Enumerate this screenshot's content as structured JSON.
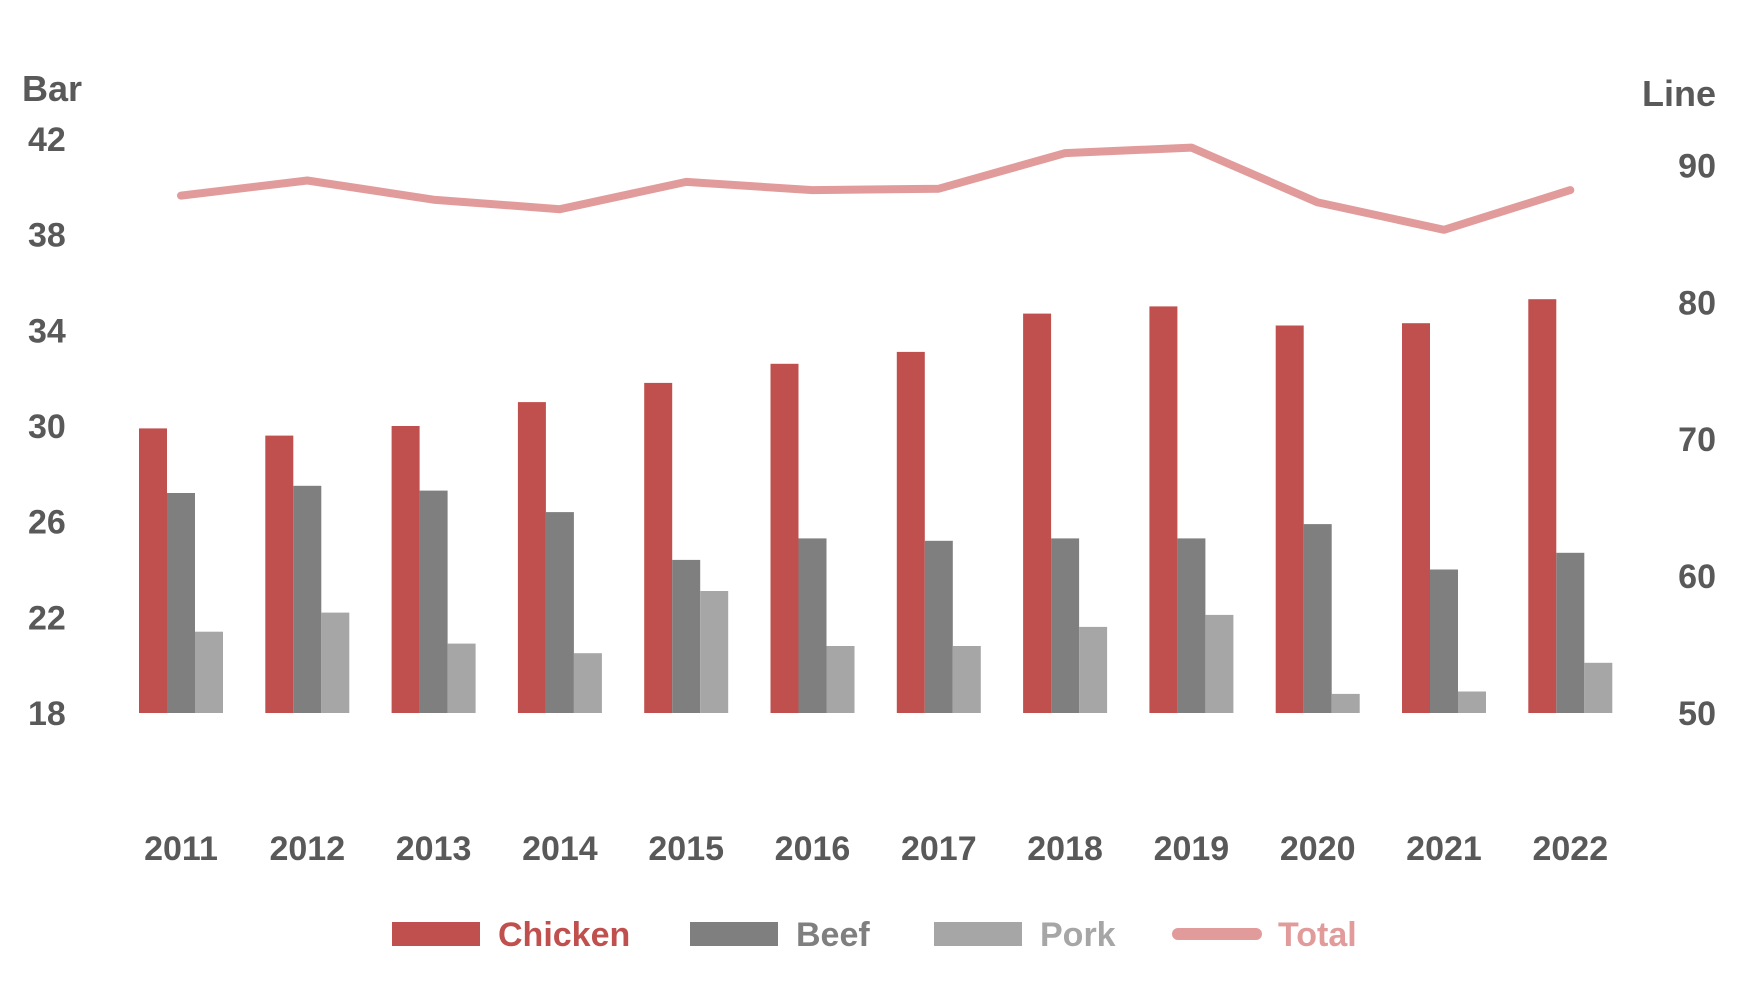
{
  "chart_data": {
    "type": "bar",
    "categories": [
      "2011",
      "2012",
      "2013",
      "2014",
      "2015",
      "2016",
      "2017",
      "2018",
      "2019",
      "2020",
      "2021",
      "2022"
    ],
    "series": [
      {
        "name": "Chicken",
        "kind": "bar",
        "axis": "left",
        "color": "#c0504d",
        "values": [
          29.9,
          29.6,
          30.0,
          31.0,
          31.8,
          32.6,
          33.1,
          34.7,
          35.0,
          34.2,
          34.3,
          35.3
        ]
      },
      {
        "name": "Beef",
        "kind": "bar",
        "axis": "left",
        "color": "#7f7f7f",
        "values": [
          27.2,
          27.5,
          27.3,
          26.4,
          24.4,
          25.3,
          25.2,
          25.3,
          25.3,
          25.9,
          24.0,
          24.7
        ]
      },
      {
        "name": "Pork",
        "kind": "bar",
        "axis": "left",
        "color": "#a6a6a6",
        "values": [
          21.4,
          22.2,
          20.9,
          20.5,
          23.1,
          20.8,
          20.8,
          21.6,
          22.1,
          18.8,
          18.9,
          20.1
        ]
      },
      {
        "name": "Total",
        "kind": "line",
        "axis": "right",
        "color": "#e29b9b",
        "values": [
          87.8,
          88.9,
          87.5,
          86.8,
          88.8,
          88.2,
          88.3,
          90.9,
          91.3,
          87.3,
          85.3,
          88.2
        ]
      }
    ],
    "left_axis": {
      "title": "Bar",
      "ylim": [
        18,
        42
      ],
      "ticks": [
        "42",
        "38",
        "34",
        "30",
        "26",
        "22",
        "18"
      ]
    },
    "right_axis": {
      "title": "Line",
      "ylim": [
        50,
        95
      ],
      "ticks": [
        "90",
        "80",
        "70",
        "60",
        "50"
      ]
    },
    "grid": false,
    "legend_position": "bottom"
  }
}
